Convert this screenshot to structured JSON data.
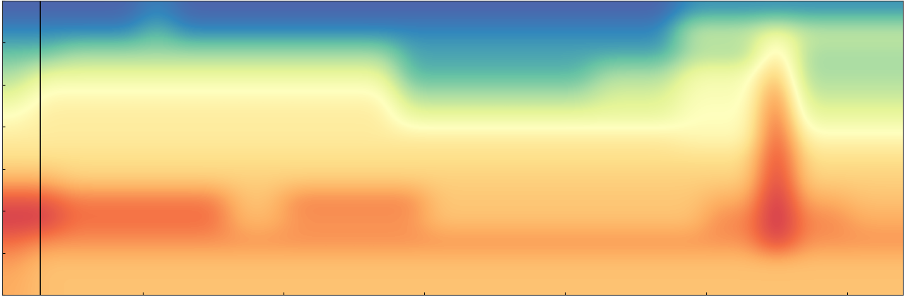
{
  "chart_data": {
    "type": "heatmap",
    "color": "Spectral_r",
    "tick_labels": false,
    "xlim": [
      0,
      32
    ],
    "ylim": [
      14,
      0
    ],
    "zlim": [
      0,
      1
    ],
    "vline_x": 1.375,
    "cells": [
      [
        0.04,
        0.04,
        0.04,
        0.04,
        0.04,
        0.1,
        0.04,
        0.04,
        0.04,
        0.04,
        0.04,
        0.04,
        0.04,
        0.04,
        0.04,
        0.04,
        0.04,
        0.04,
        0.04,
        0.04,
        0.04,
        0.04,
        0.04,
        0.04,
        0.12,
        0.12,
        0.12,
        0.12,
        0.12,
        0.12,
        0.12,
        0.12
      ],
      [
        0.1,
        0.1,
        0.1,
        0.1,
        0.1,
        0.2,
        0.1,
        0.1,
        0.1,
        0.1,
        0.1,
        0.1,
        0.1,
        0.1,
        0.1,
        0.1,
        0.1,
        0.1,
        0.1,
        0.1,
        0.1,
        0.1,
        0.1,
        0.1,
        0.35,
        0.35,
        0.35,
        0.45,
        0.35,
        0.35,
        0.35,
        0.35
      ],
      [
        0.2,
        0.2,
        0.28,
        0.28,
        0.28,
        0.28,
        0.28,
        0.28,
        0.28,
        0.28,
        0.28,
        0.28,
        0.28,
        0.28,
        0.15,
        0.15,
        0.15,
        0.15,
        0.15,
        0.15,
        0.15,
        0.15,
        0.15,
        0.15,
        0.3,
        0.3,
        0.3,
        0.6,
        0.3,
        0.3,
        0.3,
        0.3
      ],
      [
        0.3,
        0.42,
        0.42,
        0.42,
        0.42,
        0.42,
        0.42,
        0.42,
        0.42,
        0.42,
        0.42,
        0.42,
        0.42,
        0.42,
        0.18,
        0.18,
        0.18,
        0.18,
        0.18,
        0.18,
        0.18,
        0.3,
        0.3,
        0.3,
        0.45,
        0.45,
        0.45,
        0.7,
        0.3,
        0.3,
        0.3,
        0.3
      ],
      [
        0.4,
        0.52,
        0.52,
        0.52,
        0.52,
        0.52,
        0.52,
        0.52,
        0.52,
        0.52,
        0.52,
        0.52,
        0.52,
        0.52,
        0.3,
        0.3,
        0.3,
        0.3,
        0.3,
        0.3,
        0.3,
        0.38,
        0.38,
        0.38,
        0.48,
        0.48,
        0.48,
        0.8,
        0.35,
        0.35,
        0.35,
        0.35
      ],
      [
        0.5,
        0.56,
        0.56,
        0.56,
        0.56,
        0.56,
        0.56,
        0.56,
        0.56,
        0.56,
        0.56,
        0.56,
        0.56,
        0.56,
        0.42,
        0.42,
        0.42,
        0.42,
        0.42,
        0.42,
        0.42,
        0.42,
        0.42,
        0.42,
        0.5,
        0.5,
        0.5,
        0.85,
        0.42,
        0.42,
        0.42,
        0.42
      ],
      [
        0.56,
        0.56,
        0.56,
        0.56,
        0.56,
        0.56,
        0.56,
        0.56,
        0.56,
        0.56,
        0.56,
        0.56,
        0.56,
        0.56,
        0.56,
        0.56,
        0.56,
        0.56,
        0.56,
        0.56,
        0.56,
        0.56,
        0.56,
        0.56,
        0.52,
        0.52,
        0.52,
        0.88,
        0.52,
        0.52,
        0.52,
        0.52
      ],
      [
        0.6,
        0.6,
        0.6,
        0.6,
        0.6,
        0.6,
        0.6,
        0.6,
        0.6,
        0.6,
        0.6,
        0.6,
        0.6,
        0.6,
        0.6,
        0.6,
        0.6,
        0.6,
        0.6,
        0.6,
        0.6,
        0.6,
        0.6,
        0.6,
        0.6,
        0.6,
        0.6,
        0.9,
        0.6,
        0.6,
        0.6,
        0.6
      ],
      [
        0.68,
        0.68,
        0.63,
        0.63,
        0.63,
        0.63,
        0.63,
        0.63,
        0.63,
        0.63,
        0.63,
        0.63,
        0.63,
        0.63,
        0.63,
        0.63,
        0.63,
        0.63,
        0.63,
        0.63,
        0.63,
        0.63,
        0.63,
        0.63,
        0.63,
        0.63,
        0.63,
        0.92,
        0.63,
        0.63,
        0.63,
        0.63
      ],
      [
        0.85,
        0.85,
        0.78,
        0.78,
        0.78,
        0.78,
        0.78,
        0.78,
        0.66,
        0.66,
        0.76,
        0.76,
        0.76,
        0.76,
        0.76,
        0.65,
        0.65,
        0.65,
        0.65,
        0.65,
        0.65,
        0.65,
        0.65,
        0.65,
        0.65,
        0.7,
        0.7,
        0.95,
        0.7,
        0.7,
        0.66,
        0.66
      ],
      [
        0.9,
        0.9,
        0.8,
        0.8,
        0.8,
        0.8,
        0.8,
        0.8,
        0.68,
        0.68,
        0.74,
        0.74,
        0.74,
        0.74,
        0.74,
        0.66,
        0.66,
        0.66,
        0.66,
        0.66,
        0.66,
        0.66,
        0.66,
        0.66,
        0.66,
        0.76,
        0.76,
        0.95,
        0.76,
        0.76,
        0.7,
        0.7
      ],
      [
        0.8,
        0.74,
        0.74,
        0.74,
        0.74,
        0.74,
        0.74,
        0.74,
        0.74,
        0.74,
        0.74,
        0.74,
        0.74,
        0.74,
        0.74,
        0.74,
        0.74,
        0.74,
        0.74,
        0.74,
        0.74,
        0.74,
        0.74,
        0.74,
        0.74,
        0.74,
        0.74,
        0.9,
        0.74,
        0.74,
        0.74,
        0.74
      ],
      [
        0.72,
        0.66,
        0.66,
        0.66,
        0.66,
        0.66,
        0.66,
        0.66,
        0.66,
        0.66,
        0.66,
        0.66,
        0.66,
        0.66,
        0.66,
        0.66,
        0.66,
        0.66,
        0.66,
        0.66,
        0.66,
        0.66,
        0.66,
        0.66,
        0.66,
        0.66,
        0.66,
        0.66,
        0.66,
        0.66,
        0.66,
        0.66
      ],
      [
        0.7,
        0.66,
        0.66,
        0.66,
        0.66,
        0.66,
        0.66,
        0.66,
        0.66,
        0.66,
        0.66,
        0.66,
        0.66,
        0.66,
        0.66,
        0.66,
        0.66,
        0.66,
        0.66,
        0.66,
        0.66,
        0.66,
        0.66,
        0.66,
        0.66,
        0.66,
        0.66,
        0.66,
        0.66,
        0.66,
        0.66,
        0.66
      ]
    ]
  }
}
